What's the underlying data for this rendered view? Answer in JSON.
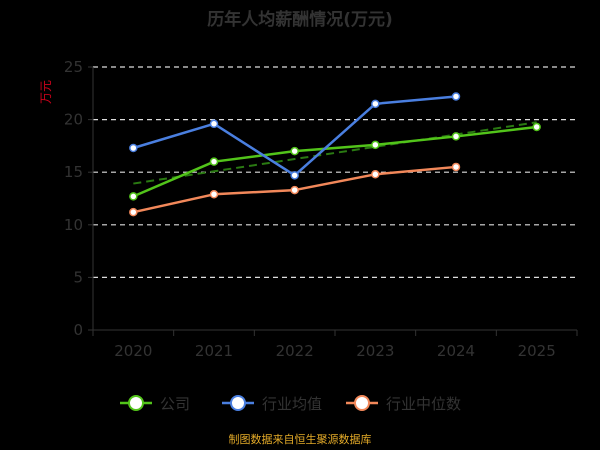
{
  "chart_data": {
    "type": "line",
    "title": "历年人均薪酬情况(万元)",
    "ylabel": "万元",
    "xlabel": "",
    "categories": [
      "2020",
      "2021",
      "2022",
      "2023",
      "2024",
      "2025"
    ],
    "ylim": [
      0,
      25
    ],
    "yticks": [
      0,
      5,
      10,
      15,
      20,
      25
    ],
    "grid": true,
    "legend_position": "bottom",
    "series": [
      {
        "name": "公司",
        "color": "#52c41a",
        "values": [
          12.7,
          16.0,
          17.0,
          17.6,
          18.4,
          19.3
        ],
        "trend_color": "#2a7a12"
      },
      {
        "name": "行业均值",
        "color": "#4a7fe0",
        "values": [
          17.3,
          19.6,
          14.7,
          21.5,
          22.2,
          null
        ]
      },
      {
        "name": "行业中位数",
        "color": "#f2885a",
        "values": [
          11.2,
          12.9,
          13.3,
          14.8,
          15.5,
          null
        ]
      }
    ],
    "source": "制图数据来自恒生聚源数据库"
  }
}
